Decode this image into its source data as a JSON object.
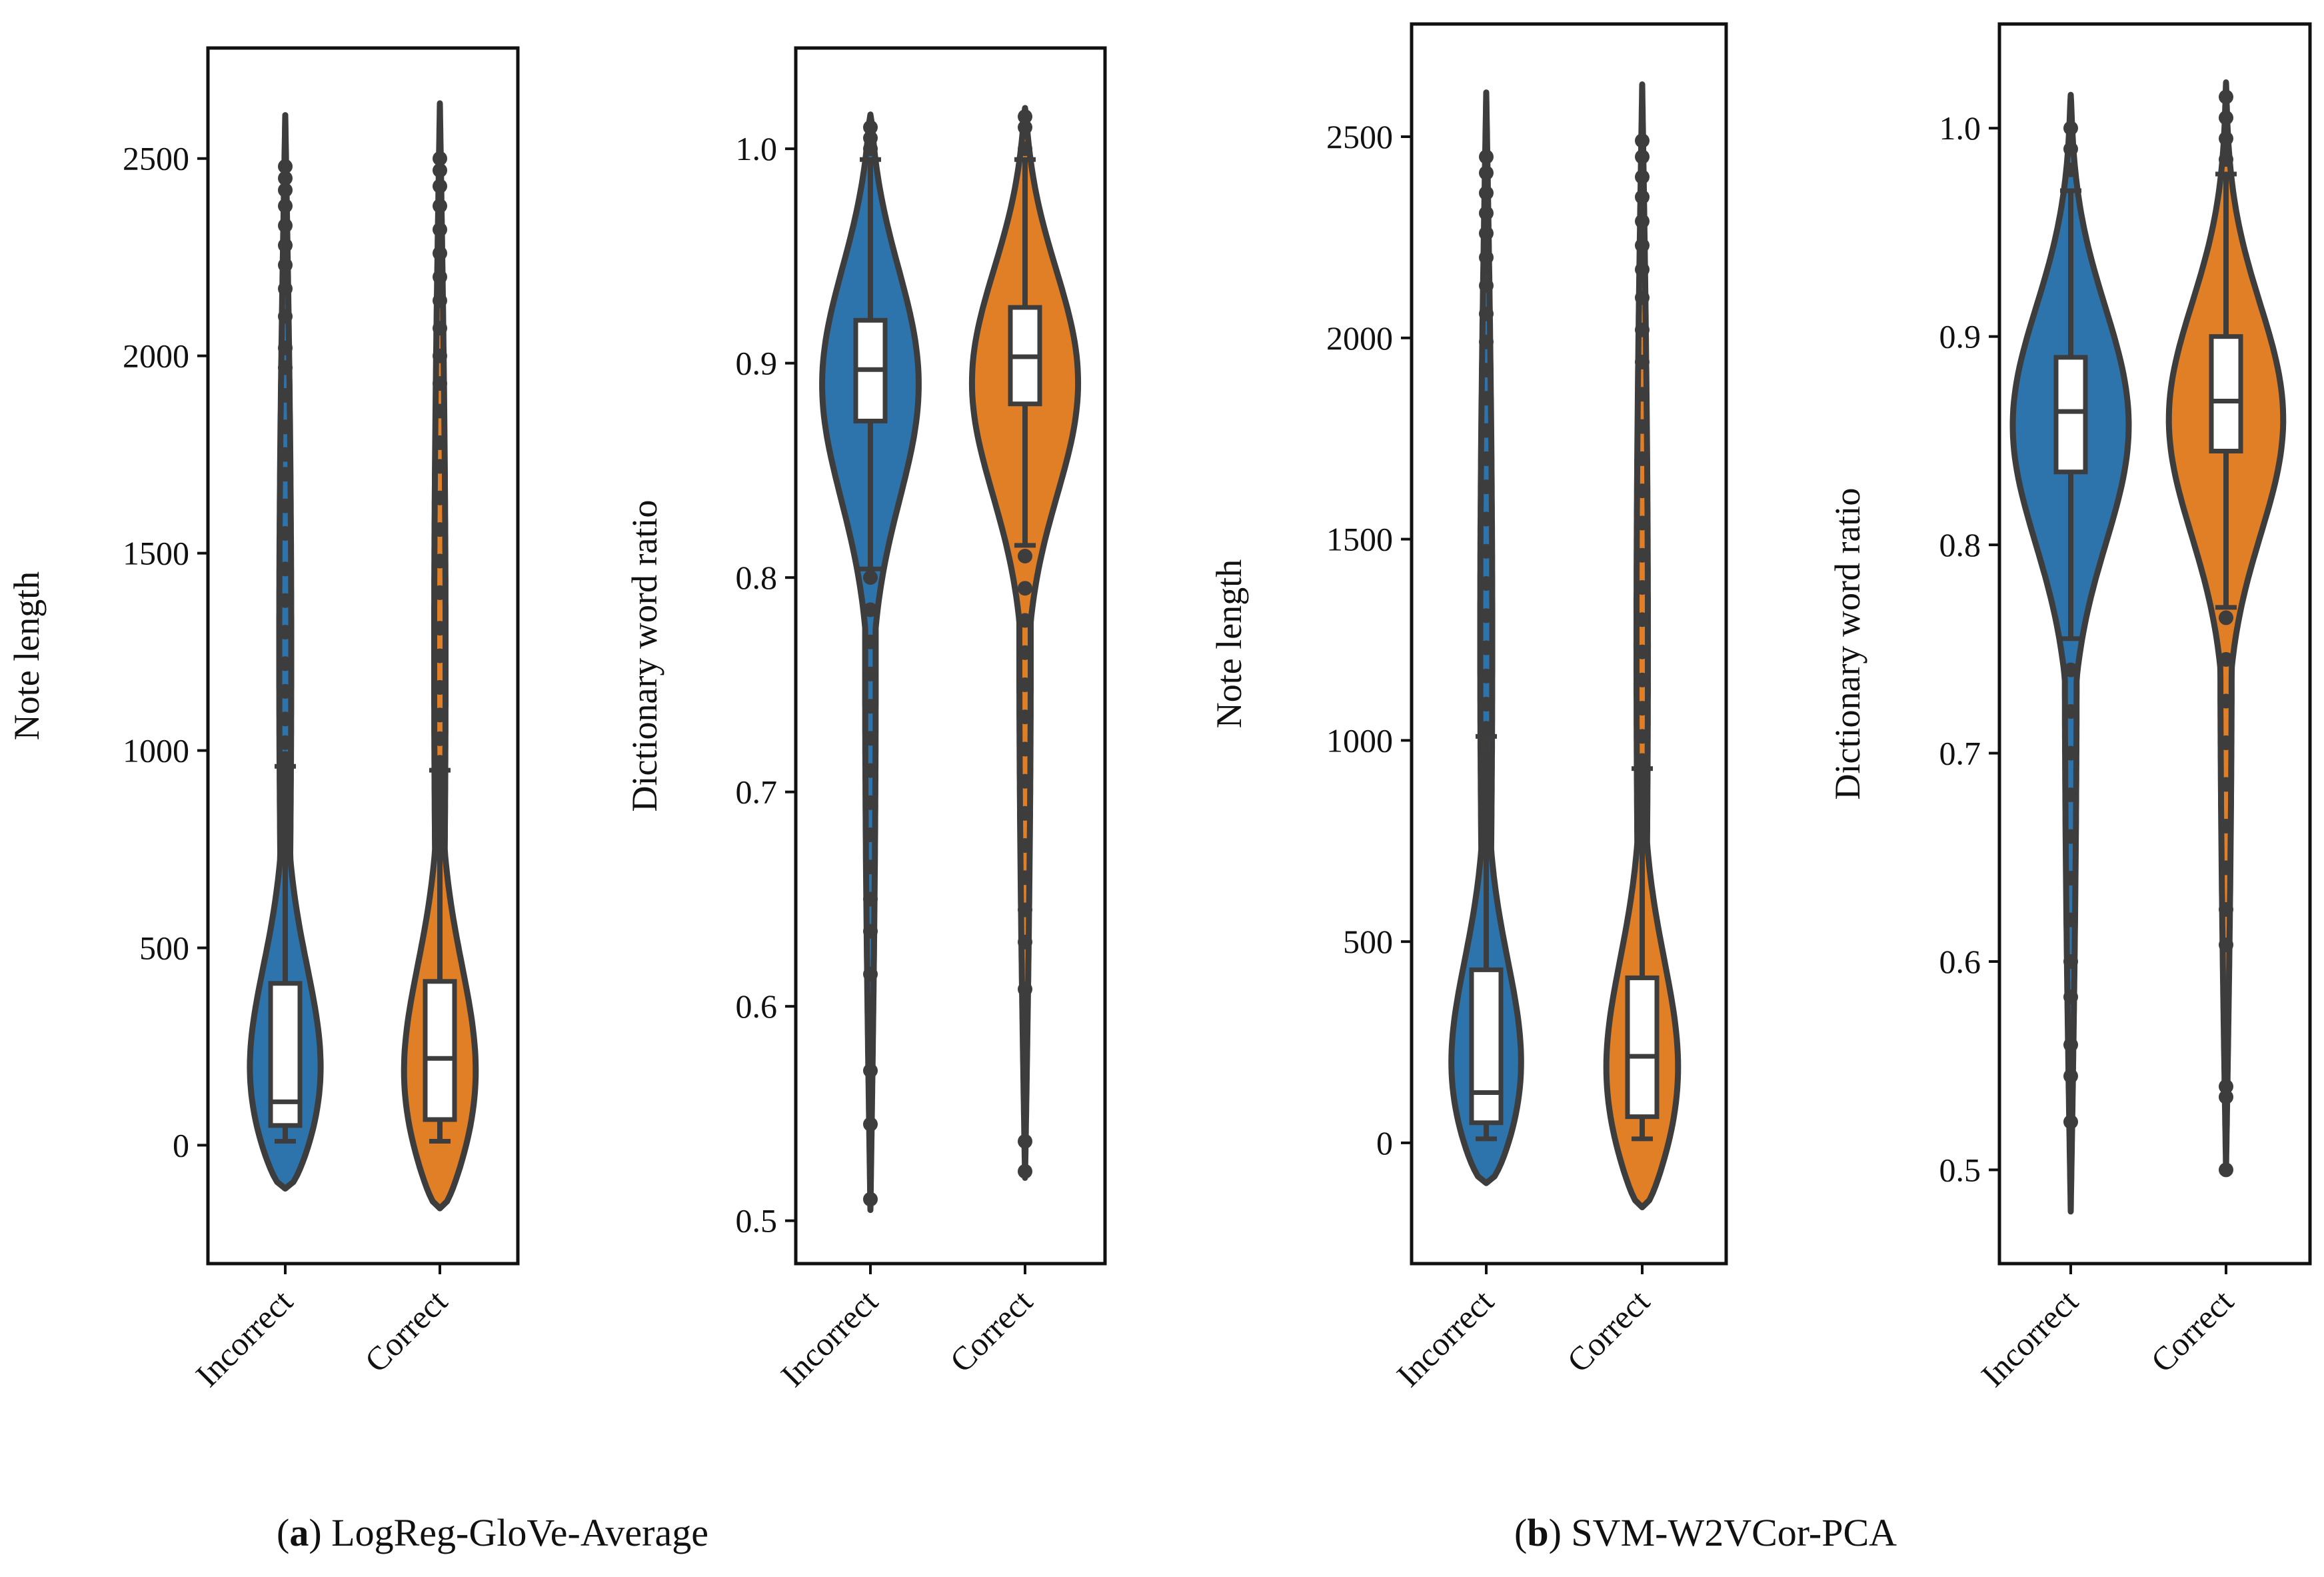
{
  "colors": {
    "incorrect": "#2e74ac",
    "correct": "#e07f26",
    "outline": "#3d3d3d",
    "box": "#ffffff"
  },
  "captions": [
    {
      "label": "a",
      "text": "LogReg-GloVe-Average"
    },
    {
      "label": "b",
      "text": "SVM-W2VCor-PCA"
    }
  ],
  "chart_data": [
    {
      "type": "violin",
      "panel": "a-left",
      "ylabel": "Note length",
      "ylim": [
        -300,
        2780
      ],
      "yticks": [
        0,
        500,
        1000,
        1500,
        2000,
        2500
      ],
      "categories": [
        "Incorrect",
        "Correct"
      ],
      "series": [
        {
          "name": "Incorrect",
          "median": 110,
          "q1": 50,
          "q3": 410,
          "whisker_low": 10,
          "whisker_high": 960,
          "kde_min": -110,
          "kde_max": 2610,
          "max_halfwidth": 100,
          "mode": 60,
          "outliers": [
            980,
            1020,
            1080,
            1150,
            1220,
            1300,
            1380,
            1460,
            1550,
            1620,
            1700,
            1750,
            1820,
            1900,
            1970,
            2020,
            2100,
            2170,
            2230,
            2280,
            2330,
            2380,
            2420,
            2450,
            2480
          ]
        },
        {
          "name": "Correct",
          "median": 220,
          "q1": 65,
          "q3": 415,
          "whisker_low": 10,
          "whisker_high": 950,
          "kde_min": -160,
          "kde_max": 2640,
          "max_halfwidth": 95,
          "mode": 60,
          "outliers": [
            970,
            1030,
            1090,
            1160,
            1240,
            1310,
            1400,
            1480,
            1560,
            1640,
            1720,
            1780,
            1860,
            1930,
            2000,
            2070,
            2140,
            2200,
            2260,
            2320,
            2380,
            2430,
            2470,
            2500
          ]
        }
      ]
    },
    {
      "type": "violin",
      "panel": "a-right",
      "ylabel": "Dictionary word ratio",
      "ylim": [
        0.48,
        1.047
      ],
      "yticks": [
        0.5,
        0.6,
        0.7,
        0.8,
        0.9,
        1.0
      ],
      "categories": [
        "Incorrect",
        "Correct"
      ],
      "series": [
        {
          "name": "Incorrect",
          "median": 0.897,
          "q1": 0.873,
          "q3": 0.92,
          "whisker_low": 0.804,
          "whisker_high": 0.995,
          "kde_min": 0.505,
          "kde_max": 1.016,
          "max_halfwidth": 88,
          "mode": 0.9,
          "outliers": [
            0.51,
            0.545,
            0.57,
            0.615,
            0.635,
            0.65,
            0.665,
            0.68,
            0.695,
            0.71,
            0.725,
            0.74,
            0.755,
            0.77,
            0.785,
            0.8,
            1.0,
            1.005,
            1.01
          ]
        },
        {
          "name": "Correct",
          "median": 0.903,
          "q1": 0.881,
          "q3": 0.926,
          "whisker_low": 0.815,
          "whisker_high": 0.995,
          "kde_min": 0.52,
          "kde_max": 1.019,
          "max_halfwidth": 95,
          "mode": 0.9,
          "outliers": [
            0.523,
            0.537,
            0.608,
            0.63,
            0.645,
            0.66,
            0.675,
            0.69,
            0.705,
            0.72,
            0.735,
            0.75,
            0.765,
            0.78,
            0.795,
            0.81,
            1.0,
            1.01,
            1.015
          ]
        }
      ]
    },
    {
      "type": "violin",
      "panel": "b-left",
      "ylabel": "Note length",
      "ylim": [
        -300,
        2780
      ],
      "yticks": [
        0,
        500,
        1000,
        1500,
        2000,
        2500
      ],
      "categories": [
        "Incorrect",
        "Correct"
      ],
      "series": [
        {
          "name": "Incorrect",
          "median": 125,
          "q1": 50,
          "q3": 430,
          "whisker_low": 10,
          "whisker_high": 1010,
          "kde_min": -100,
          "kde_max": 2610,
          "max_halfwidth": 100,
          "mode": 60,
          "outliers": [
            1030,
            1090,
            1160,
            1230,
            1310,
            1390,
            1470,
            1550,
            1630,
            1700,
            1770,
            1850,
            1920,
            1990,
            2060,
            2130,
            2200,
            2260,
            2310,
            2360,
            2410,
            2450
          ]
        },
        {
          "name": "Correct",
          "median": 215,
          "q1": 65,
          "q3": 410,
          "whisker_low": 10,
          "whisker_high": 930,
          "kde_min": -160,
          "kde_max": 2630,
          "max_halfwidth": 95,
          "mode": 60,
          "outliers": [
            950,
            1010,
            1080,
            1150,
            1220,
            1300,
            1380,
            1460,
            1540,
            1620,
            1700,
            1780,
            1860,
            1940,
            2020,
            2100,
            2170,
            2230,
            2290,
            2350,
            2400,
            2450,
            2490
          ]
        }
      ]
    },
    {
      "type": "violin",
      "panel": "b-right",
      "ylabel": "Dictionary word ratio",
      "ylim": [
        0.455,
        1.05
      ],
      "yticks": [
        0.5,
        0.6,
        0.7,
        0.8,
        0.9,
        1.0
      ],
      "categories": [
        "Incorrect",
        "Correct"
      ],
      "series": [
        {
          "name": "Incorrect",
          "median": 0.864,
          "q1": 0.835,
          "q3": 0.89,
          "whisker_low": 0.755,
          "whisker_high": 0.97,
          "kde_min": 0.48,
          "kde_max": 1.016,
          "max_halfwidth": 98,
          "mode": 0.865,
          "outliers": [
            0.523,
            0.545,
            0.56,
            0.583,
            0.6,
            0.62,
            0.64,
            0.66,
            0.68,
            0.7,
            0.72,
            0.74,
            0.98,
            0.99,
            1.0
          ]
        },
        {
          "name": "Correct",
          "median": 0.869,
          "q1": 0.845,
          "q3": 0.9,
          "whisker_low": 0.77,
          "whisker_high": 0.978,
          "kde_min": 0.5,
          "kde_max": 1.022,
          "max_halfwidth": 95,
          "mode": 0.867,
          "outliers": [
            0.5,
            0.535,
            0.54,
            0.608,
            0.625,
            0.645,
            0.665,
            0.685,
            0.705,
            0.725,
            0.745,
            0.765,
            0.985,
            0.995,
            1.005,
            1.015
          ]
        }
      ]
    }
  ]
}
